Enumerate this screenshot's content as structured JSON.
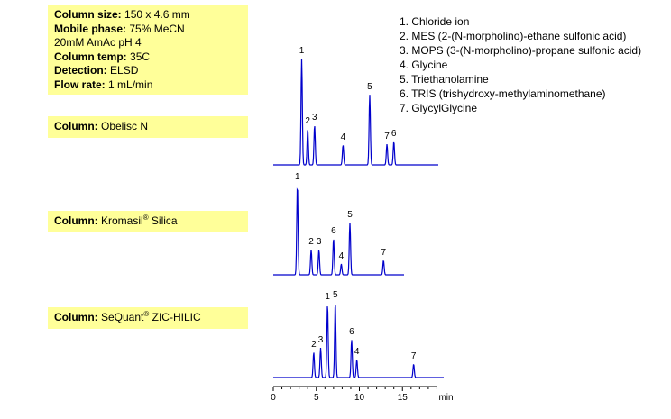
{
  "conditions": [
    {
      "label": "Column size:",
      "value": "150 x 4.6 mm"
    },
    {
      "label": "Mobile phase:",
      "value": "75% MeCN"
    },
    {
      "label": "",
      "value": "20mM AmAc pH 4"
    },
    {
      "label": "Column temp:",
      "value": "35C"
    },
    {
      "label": "Detection:",
      "value": "ELSD"
    },
    {
      "label": "Flow rate:",
      "value": "1 mL/min"
    }
  ],
  "columns": [
    {
      "label": "Column:",
      "name": "Obelisc N",
      "reg": ""
    },
    {
      "label": "Column:",
      "name": "Kromasil",
      "reg": "®",
      "suffix": " Silica"
    },
    {
      "label": "Column:",
      "name": "SeQuant",
      "reg": "®",
      "suffix": " ZIC-HILIC"
    }
  ],
  "compounds": [
    "1. Chloride ion",
    "2. MES (2-(N-morpholino)-ethane sulfonic acid)",
    "3. MOPS (3-(N-morpholino)-propane sulfonic acid)",
    "4. Glycine",
    "5. Triethanolamine",
    "6. TRIS (trishydroxy-methylaminomethane)",
    "7. GlycylGlycine"
  ],
  "colors": {
    "trace": "#0000cc",
    "box": "#ffff99",
    "axis": "#000000"
  },
  "chart_data": {
    "type": "line",
    "xlabel": "min",
    "xlim": [
      0,
      19
    ],
    "xticks": [
      0,
      5,
      10,
      15
    ],
    "series": [
      {
        "peaks": [
          {
            "label": "1",
            "t": 3.3,
            "h": 118
          },
          {
            "label": "2",
            "t": 4.0,
            "h": 40
          },
          {
            "label": "3",
            "t": 4.8,
            "h": 44
          },
          {
            "label": "4",
            "t": 8.1,
            "h": 22
          },
          {
            "label": "5",
            "t": 11.2,
            "h": 78
          },
          {
            "label": "7",
            "t": 13.2,
            "h": 23
          },
          {
            "label": "6",
            "t": 14.0,
            "h": 26
          }
        ]
      },
      {
        "peaks": [
          {
            "label": "1",
            "t": 2.8,
            "h": 100
          },
          {
            "label": "2",
            "t": 4.4,
            "h": 28
          },
          {
            "label": "3",
            "t": 5.3,
            "h": 28
          },
          {
            "label": "6",
            "t": 7.0,
            "h": 40
          },
          {
            "label": "4",
            "t": 7.9,
            "h": 12
          },
          {
            "label": "5",
            "t": 8.9,
            "h": 58
          },
          {
            "label": "7",
            "t": 12.8,
            "h": 16
          }
        ]
      },
      {
        "peaks": [
          {
            "label": "2",
            "t": 4.7,
            "h": 28
          },
          {
            "label": "3",
            "t": 5.5,
            "h": 33
          },
          {
            "label": "1",
            "t": 6.3,
            "h": 81
          },
          {
            "label": "5",
            "t": 7.2,
            "h": 83
          },
          {
            "label": "6",
            "t": 9.1,
            "h": 42
          },
          {
            "label": "4",
            "t": 9.7,
            "h": 20
          },
          {
            "label": "7",
            "t": 16.3,
            "h": 15
          }
        ]
      }
    ]
  }
}
